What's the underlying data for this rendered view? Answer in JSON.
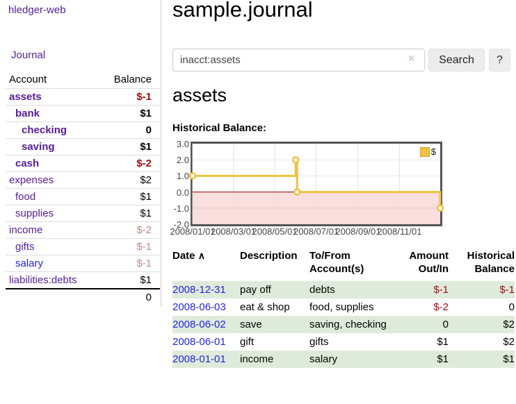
{
  "colors": {
    "purple_link": "#571c9b",
    "blue_link": "#2323e6",
    "negative_strong": "#a30d0d",
    "negative_faded": "#bd8c8c",
    "row_stripe_green": "#dfebda",
    "series_gold": "#edc240",
    "chart_negative_fill": "#fbdede",
    "chart_zero_line": "#8b0000",
    "chart_border": "#545454"
  },
  "sidebar": {
    "brand": "hledger-web",
    "nav_journal": "Journal",
    "accounts_table": {
      "headers": {
        "account": "Account",
        "balance": "Balance"
      },
      "rows": [
        {
          "label": "assets",
          "indent": 1,
          "bold": true,
          "link_color": "purple",
          "value": "$-1",
          "value_style": "negative"
        },
        {
          "label": "bank",
          "indent": 2,
          "bold": true,
          "link_color": "purple",
          "value": "$1",
          "value_style": "normal"
        },
        {
          "label": "checking",
          "indent": 3,
          "bold": true,
          "link_color": "purple",
          "value": "0",
          "value_style": "normal"
        },
        {
          "label": "saving",
          "indent": 3,
          "bold": true,
          "link_color": "purple",
          "value": "$1",
          "value_style": "normal"
        },
        {
          "label": "cash",
          "indent": 2,
          "bold": true,
          "link_color": "purple",
          "value": "$-2",
          "value_style": "negative"
        },
        {
          "label": "expenses",
          "indent": 1,
          "bold": false,
          "link_color": "purple",
          "value": "$2",
          "value_style": "normal"
        },
        {
          "label": "food",
          "indent": 2,
          "bold": false,
          "link_color": "purple",
          "value": "$1",
          "value_style": "normal"
        },
        {
          "label": "supplies",
          "indent": 2,
          "bold": false,
          "link_color": "purple",
          "value": "$1",
          "value_style": "normal"
        },
        {
          "label": "income",
          "indent": 1,
          "bold": false,
          "link_color": "purple",
          "value": "$-2",
          "value_style": "negative-faded"
        },
        {
          "label": "gifts",
          "indent": 2,
          "bold": false,
          "link_color": "purple",
          "value": "$-1",
          "value_style": "negative-faded"
        },
        {
          "label": "salary",
          "indent": 2,
          "bold": false,
          "link_color": "blue",
          "value": "$-1",
          "value_style": "negative-faded"
        },
        {
          "label": "liabilities:debts",
          "indent": 1,
          "bold": false,
          "link_color": "purple",
          "value": "$1",
          "value_style": "normal"
        }
      ],
      "total": "0"
    }
  },
  "main": {
    "title": "sample.journal",
    "search": {
      "value": "inacct:assets",
      "clear_icon": "×",
      "button": "Search",
      "help": "?"
    },
    "account_heading": "assets",
    "chart_label": "Historical Balance:"
  },
  "chart_data": {
    "type": "line",
    "title": "Historical Balance",
    "step": true,
    "xrange": [
      "2008/01/01",
      "2008/12/31"
    ],
    "ylim": [
      -2,
      3
    ],
    "yticks": [
      "3.0",
      "2.0",
      "1.0",
      "0.0",
      "-1.0",
      "-2.0"
    ],
    "xticks": [
      "2008/01/01",
      "2008/03/01",
      "2008/05/01",
      "2008/07/01",
      "2008/09/01",
      "2008/11/01"
    ],
    "series": [
      {
        "name": "$",
        "color": "#edc240",
        "points": [
          [
            "2008/01/01",
            1
          ],
          [
            "2008/06/01",
            2
          ],
          [
            "2008/06/03",
            0
          ],
          [
            "2008/12/31",
            -1
          ]
        ]
      }
    ],
    "legend_position": "top-right",
    "grid": true,
    "negative_region_color": "#fbdede",
    "zero_line_color": "#8b0000"
  },
  "register": {
    "headers": {
      "date": "Date",
      "description": "Description",
      "accounts": "To/From Account(s)",
      "amount": "Amount Out/In",
      "balance": "Historical Balance"
    },
    "sort_icon": "∧",
    "rows": [
      {
        "date": "2008-12-31",
        "description": "pay off",
        "accounts": "debts",
        "amount": "$-1",
        "balance": "$-1"
      },
      {
        "date": "2008-06-03",
        "description": "eat & shop",
        "accounts": "food, supplies",
        "amount": "$-2",
        "balance": "0"
      },
      {
        "date": "2008-06-02",
        "description": "save",
        "accounts": "saving, checking",
        "amount": "0",
        "balance": "$2"
      },
      {
        "date": "2008-06-01",
        "description": "gift",
        "accounts": "gifts",
        "amount": "$1",
        "balance": "$2"
      },
      {
        "date": "2008-01-01",
        "description": "income",
        "accounts": "salary",
        "amount": "$1",
        "balance": "$1"
      }
    ]
  }
}
